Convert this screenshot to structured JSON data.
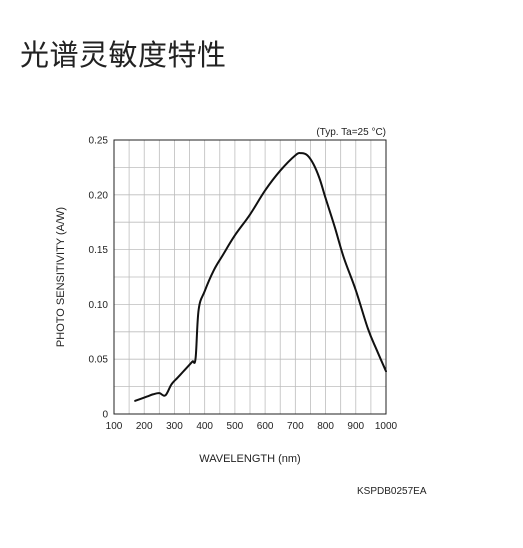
{
  "heading": "光谱灵敏度特性",
  "figure_code": "KSPDB0257EA",
  "chart_data": {
    "type": "line",
    "condition_label": "(Typ. Ta=25 °C)",
    "xlabel": "WAVELENGTH (nm)",
    "ylabel": "PHOTO SENSITIVITY (A/W)",
    "xlim": [
      100,
      1000
    ],
    "ylim": [
      0,
      0.25
    ],
    "x_ticks": [
      100,
      200,
      300,
      400,
      500,
      600,
      700,
      800,
      900,
      1000
    ],
    "y_ticks": [
      0,
      0.05,
      0.1,
      0.15,
      0.2,
      0.25
    ],
    "x_tick_labels": [
      "100",
      "200",
      "300",
      "400",
      "500",
      "600",
      "700",
      "800",
      "900",
      "1000"
    ],
    "y_tick_labels": [
      "0",
      "0.05",
      "0.10",
      "0.15",
      "0.20",
      "0.25"
    ],
    "grid": true,
    "series": [
      {
        "color": "#111111",
        "x": [
          170,
          190,
          210,
          230,
          250,
          270,
          290,
          310,
          330,
          350,
          360,
          370,
          380,
          400,
          430,
          460,
          500,
          550,
          600,
          650,
          700,
          720,
          740,
          760,
          780,
          800,
          830,
          860,
          900,
          940,
          970,
          1000
        ],
        "y": [
          0.012,
          0.014,
          0.016,
          0.018,
          0.019,
          0.017,
          0.027,
          0.033,
          0.039,
          0.045,
          0.048,
          0.051,
          0.095,
          0.112,
          0.131,
          0.145,
          0.163,
          0.182,
          0.204,
          0.222,
          0.236,
          0.238,
          0.236,
          0.228,
          0.215,
          0.197,
          0.171,
          0.143,
          0.113,
          0.078,
          0.058,
          0.039
        ]
      }
    ]
  }
}
